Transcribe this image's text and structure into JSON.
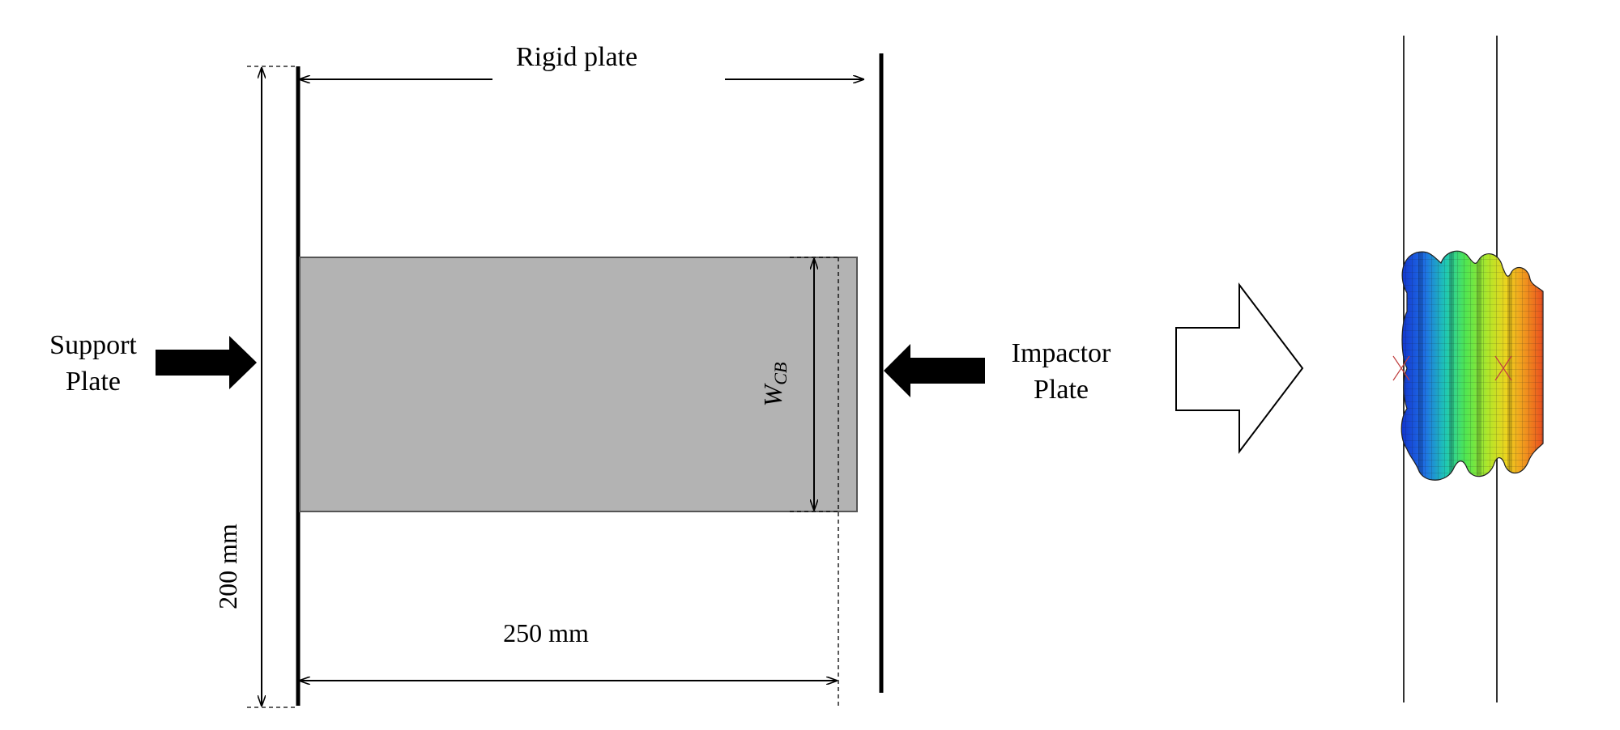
{
  "labels": {
    "rigid_plate": "Rigid plate",
    "support_line1": "Support",
    "support_line2": "Plate",
    "impactor_line1": "Impactor",
    "impactor_line2": "Plate",
    "height_dim": "200 mm",
    "length_dim": "250 mm",
    "width_symbol": "W",
    "width_subscript": "CB"
  },
  "colors": {
    "line": "#000000",
    "specimen_fill": "#b3b3b3",
    "specimen_edge": "#555555",
    "arrow_fill": "#000000",
    "outline_arrow_fill": "#ffffff",
    "deformed_colormap": [
      "#1028c8",
      "#1e6ee6",
      "#1ec8b4",
      "#50e650",
      "#b4e628",
      "#f0d21e",
      "#f08c1e",
      "#e6321e"
    ]
  }
}
